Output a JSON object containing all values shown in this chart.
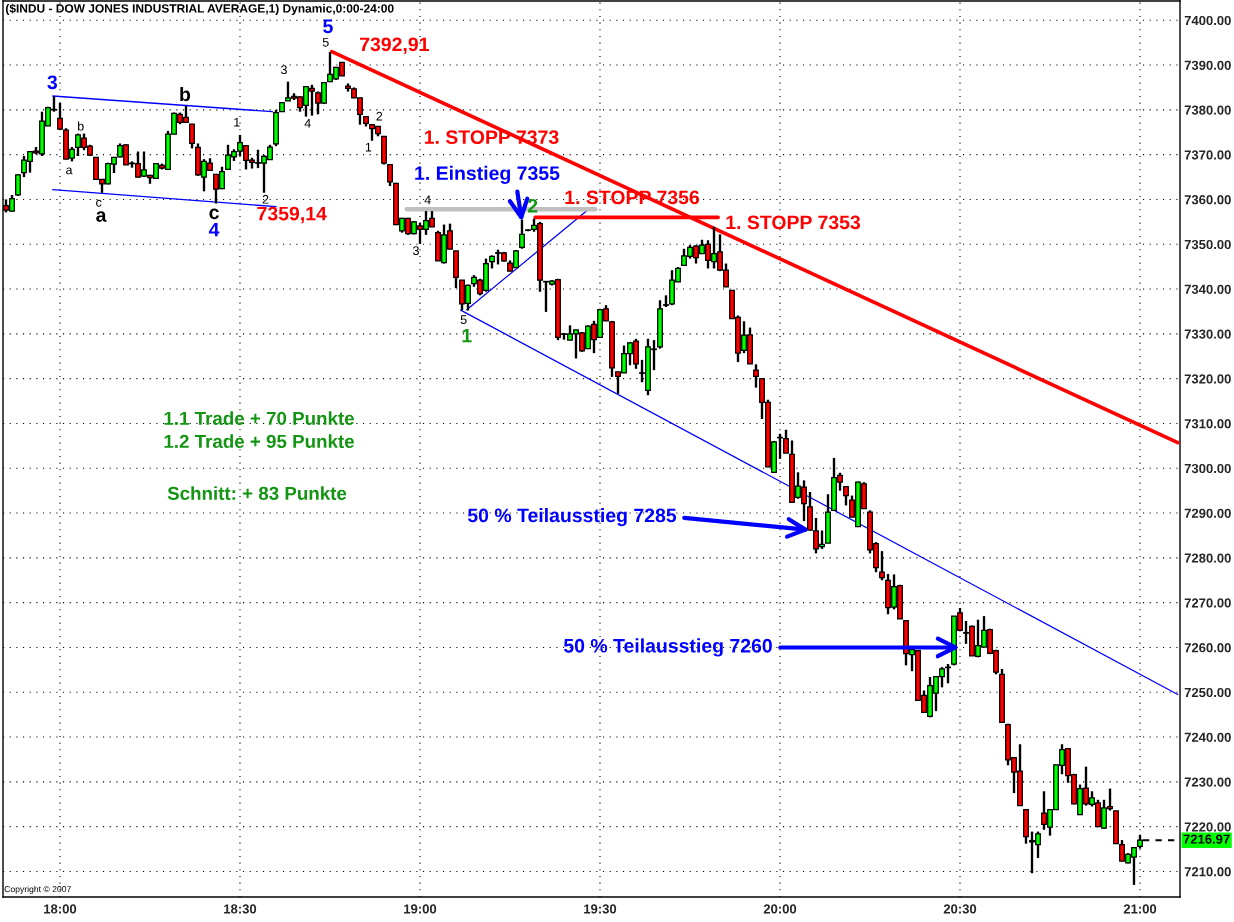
{
  "chart_data": {
    "type": "candlestick",
    "title": "($INDU - DOW JONES INDUSTRIAL AVERAGE,1) Dynamic,0:00-24:00",
    "x": [
      17.85,
      17.8667,
      17.8833,
      17.9,
      17.9167,
      17.9333,
      17.95,
      17.9667,
      17.9833,
      18,
      18.0167,
      18.0333,
      18.05,
      18.0667,
      18.0833,
      18.1,
      18.1167,
      18.1333,
      18.15,
      18.1667,
      18.1833,
      18.2,
      18.2167,
      18.2333,
      18.25,
      18.2667,
      18.2833,
      18.3,
      18.3167,
      18.3333,
      18.35,
      18.3667,
      18.3833,
      18.4,
      18.4167,
      18.4333,
      18.45,
      18.4667,
      18.4833,
      18.5,
      18.5167,
      18.5333,
      18.55,
      18.5667,
      18.5833,
      18.6,
      18.6167,
      18.6333,
      18.65,
      18.6667,
      18.6833,
      18.7,
      18.7167,
      18.7333,
      18.75,
      18.7667,
      18.7833,
      18.8,
      18.8167,
      18.8333,
      18.85,
      18.8667,
      18.8833,
      18.9,
      18.9167,
      18.9333,
      18.95,
      18.9667,
      18.9833,
      19,
      19.0167,
      19.0333,
      19.05,
      19.0667,
      19.0833,
      19.1,
      19.1167,
      19.1333,
      19.15,
      19.1667,
      19.1833,
      19.2,
      19.2167,
      19.2333,
      19.25,
      19.2667,
      19.2833,
      19.3,
      19.3167,
      19.3333,
      19.35,
      19.3667,
      19.3833,
      19.4,
      19.4167,
      19.4333,
      19.45,
      19.4667,
      19.4833,
      19.5,
      19.5167,
      19.5333,
      19.55,
      19.5667,
      19.5833,
      19.6,
      19.6167,
      19.6333,
      19.65,
      19.6667,
      19.6833,
      19.7,
      19.7167,
      19.7333,
      19.75,
      19.7667,
      19.7833,
      19.8,
      19.8167,
      19.8333,
      19.85,
      19.8667,
      19.8833,
      19.9,
      19.9167,
      19.9333,
      19.95,
      19.9667,
      19.9833,
      20,
      20.0167,
      20.0333,
      20.05,
      20.0667,
      20.0833,
      20.1,
      20.1167,
      20.1333,
      20.15,
      20.1667,
      20.1833,
      20.2,
      20.2167,
      20.2333,
      20.25,
      20.2667,
      20.2833,
      20.3,
      20.3167,
      20.3333,
      20.35,
      20.3667,
      20.3833,
      20.4,
      20.4167,
      20.4333,
      20.45,
      20.4667,
      20.4833,
      20.5,
      20.5167,
      20.5333,
      20.55,
      20.5667,
      20.5833,
      20.6,
      20.6167,
      20.6333,
      20.65,
      20.6667,
      20.6833,
      20.7,
      20.7167,
      20.7333,
      20.75,
      20.7667,
      20.7833,
      20.8,
      20.8167,
      20.8333,
      20.85,
      20.8667,
      20.8833,
      20.9,
      20.9167,
      20.9333,
      20.95,
      20.9667,
      20.9833,
      21
    ],
    "ohlc": [
      [
        7358.6,
        7360.0,
        7357.1,
        7357.6
      ],
      [
        7357.4,
        7361.0,
        7357.3,
        7360.2
      ],
      [
        7361.0,
        7365.6,
        7360.8,
        7365.5
      ],
      [
        7366.0,
        7369.7,
        7365.0,
        7368.8
      ],
      [
        7368.5,
        7370.8,
        7366.0,
        7370.7
      ],
      [
        7370.8,
        7371.7,
        7370.1,
        7370.4
      ],
      [
        7370.2,
        7379.6,
        7369.7,
        7377.5
      ],
      [
        7376.4,
        7380.7,
        7376.4,
        7380.5
      ],
      [
        7380.1,
        7383.0,
        7379.6,
        7380.0
      ],
      [
        7378.1,
        7381.6,
        7375.5,
        7375.7
      ],
      [
        7375.5,
        7375.9,
        7369.0,
        7369.0
      ],
      [
        7369.2,
        7371.7,
        7368.5,
        7371.2
      ],
      [
        7371.6,
        7374.7,
        7369.7,
        7374.4
      ],
      [
        7373.7,
        7374.7,
        7371.0,
        7371.6
      ],
      [
        7371.9,
        7372.2,
        7369.7,
        7369.9
      ],
      [
        7369.4,
        7369.4,
        7364.5,
        7364.5
      ],
      [
        7364.5,
        7364.5,
        7361.5,
        7363.5
      ],
      [
        7363.5,
        7368.2,
        7363.4,
        7368.0
      ],
      [
        7367.9,
        7369.4,
        7365.9,
        7369.4
      ],
      [
        7369.5,
        7372.5,
        7369.4,
        7372.0
      ],
      [
        7372.2,
        7372.3,
        7367.7,
        7367.7
      ],
      [
        7368.1,
        7368.5,
        7367.1,
        7368.0
      ],
      [
        7368.0,
        7370.7,
        7364.9,
        7365.0
      ],
      [
        7365.2,
        7370.7,
        7365.0,
        7366.6
      ],
      [
        7365.4,
        7365.5,
        7363.5,
        7364.9
      ],
      [
        7364.7,
        7368.1,
        7364.7,
        7368.0
      ],
      [
        7367.6,
        7368.0,
        7366.7,
        7367.0
      ],
      [
        7366.7,
        7375.3,
        7366.7,
        7374.6
      ],
      [
        7374.6,
        7379.4,
        7374.6,
        7379.2
      ],
      [
        7379.0,
        7379.4,
        7376.8,
        7377.2
      ],
      [
        7378.3,
        7380.9,
        7377.2,
        7377.2
      ],
      [
        7376.8,
        7376.8,
        7371.4,
        7372.5
      ],
      [
        7371.6,
        7372.5,
        7365.3,
        7365.5
      ],
      [
        7365.0,
        7369.0,
        7361.8,
        7368.5
      ],
      [
        7368.1,
        7369.2,
        7366.4,
        7366.5
      ],
      [
        7365.6,
        7365.6,
        7359.1,
        7362.3
      ],
      [
        7362.4,
        7367.3,
        7362.3,
        7366.2
      ],
      [
        7366.7,
        7372.2,
        7366.7,
        7369.9
      ],
      [
        7369.5,
        7371.2,
        7368.6,
        7370.7
      ],
      [
        7370.8,
        7374.4,
        7369.7,
        7372.7
      ],
      [
        7372.0,
        7372.0,
        7366.7,
        7368.7
      ],
      [
        7368.8,
        7369.3,
        7366.9,
        7368.3
      ],
      [
        7368.2,
        7371.1,
        7367.0,
        7368.1
      ],
      [
        7368.1,
        7369.9,
        7361.5,
        7369.6
      ],
      [
        7368.9,
        7372.2,
        7368.9,
        7371.7
      ],
      [
        7372.4,
        7380.0,
        7371.9,
        7379.4
      ],
      [
        7379.6,
        7381.7,
        7379.6,
        7381.6
      ],
      [
        7382.0,
        7386.3,
        7382.0,
        7382.7
      ],
      [
        7383.0,
        7383.7,
        7382.2,
        7382.6
      ],
      [
        7382.9,
        7383.0,
        7379.6,
        7380.5
      ],
      [
        7381.0,
        7385.2,
        7378.5,
        7385.2
      ],
      [
        7384.8,
        7385.6,
        7378.7,
        7384.2
      ],
      [
        7383.8,
        7384.1,
        7379.0,
        7381.5
      ],
      [
        7381.5,
        7386.1,
        7381.3,
        7386.1
      ],
      [
        7386.3,
        7392.9,
        7386.3,
        7387.9
      ],
      [
        7386.9,
        7389.6,
        7386.7,
        7389.5
      ],
      [
        7390.6,
        7390.6,
        7387.6,
        7387.6
      ],
      [
        7385.3,
        7385.9,
        7384.1,
        7384.8
      ],
      [
        7384.7,
        7385.0,
        7382.6,
        7382.7
      ],
      [
        7382.7,
        7382.7,
        7376.7,
        7379.0
      ],
      [
        7378.5,
        7378.5,
        7376.3,
        7377.0
      ],
      [
        7376.7,
        7376.8,
        7373.1,
        7375.8
      ],
      [
        7376.3,
        7376.3,
        7374.1,
        7374.7
      ],
      [
        7374.1,
        7374.1,
        7367.8,
        7368.1
      ],
      [
        7367.8,
        7367.8,
        7363.0,
        7363.9
      ],
      [
        7363.6,
        7363.7,
        7354.4,
        7354.4
      ],
      [
        7353.0,
        7355.9,
        7352.6,
        7355.8
      ],
      [
        7355.8,
        7355.9,
        7352.1,
        7352.4
      ],
      [
        7352.4,
        7355.2,
        7352.2,
        7355.0
      ],
      [
        7354.1,
        7354.8,
        7350.1,
        7353.3
      ],
      [
        7353.3,
        7357.4,
        7352.1,
        7355.3
      ],
      [
        7355.8,
        7357.4,
        7353.9,
        7353.9
      ],
      [
        7352.6,
        7353.0,
        7346.3,
        7346.3
      ],
      [
        7345.9,
        7354.4,
        7345.7,
        7352.1
      ],
      [
        7353.0,
        7354.6,
        7348.9,
        7348.9
      ],
      [
        7348.5,
        7348.5,
        7340.2,
        7342.6
      ],
      [
        7342.0,
        7342.0,
        7335.3,
        7336.7
      ],
      [
        7336.8,
        7341.0,
        7335.2,
        7340.8
      ],
      [
        7341.2,
        7343.1,
        7340.5,
        7342.6
      ],
      [
        7342.0,
        7342.3,
        7338.6,
        7339.0
      ],
      [
        7339.7,
        7346.8,
        7339.4,
        7345.7
      ],
      [
        7346.1,
        7347.5,
        7344.6,
        7347.3
      ],
      [
        7348.0,
        7348.8,
        7345.5,
        7348.1
      ],
      [
        7348.1,
        7348.3,
        7346.1,
        7346.3
      ],
      [
        7345.8,
        7346.4,
        7344.0,
        7344.0
      ],
      [
        7344.8,
        7348.7,
        7344.8,
        7348.5
      ],
      [
        7349.3,
        7355.5,
        7349.0,
        7352.2
      ],
      [
        7353.1,
        7353.3,
        7352.9,
        7353.2
      ],
      [
        7353.3,
        7355.7,
        7352.8,
        7354.2
      ],
      [
        7354.6,
        7355.0,
        7339.4,
        7342.0
      ],
      [
        7341.7,
        7341.8,
        7334.9,
        7341.6
      ],
      [
        7341.1,
        7342.0,
        7340.8,
        7341.8
      ],
      [
        7342.1,
        7342.3,
        7328.6,
        7329.2
      ],
      [
        7330.0,
        7330.2,
        7328.7,
        7329.9
      ],
      [
        7328.6,
        7331.9,
        7328.6,
        7330.0
      ],
      [
        7330.0,
        7330.9,
        7324.5,
        7330.9
      ],
      [
        7330.2,
        7330.4,
        7326.0,
        7326.2
      ],
      [
        7326.7,
        7331.9,
        7326.7,
        7331.7
      ],
      [
        7332.1,
        7332.9,
        7325.7,
        7328.7
      ],
      [
        7329.2,
        7335.6,
        7329.2,
        7335.4
      ],
      [
        7335.6,
        7336.4,
        7332.9,
        7332.9
      ],
      [
        7332.7,
        7332.9,
        7320.4,
        7322.4
      ],
      [
        7321.5,
        7321.5,
        7316.6,
        7320.5
      ],
      [
        7321.3,
        7327.4,
        7321.3,
        7325.6
      ],
      [
        7325.6,
        7328.2,
        7323.0,
        7328.0
      ],
      [
        7328.4,
        7328.9,
        7322.2,
        7323.3
      ],
      [
        7321.3,
        7324.2,
        7319.2,
        7321.2
      ],
      [
        7317.4,
        7328.9,
        7316.3,
        7327.1
      ],
      [
        7326.6,
        7328.6,
        7321.9,
        7326.5
      ],
      [
        7327.1,
        7337.5,
        7326.7,
        7335.6
      ],
      [
        7336.5,
        7338.6,
        7336.0,
        7336.4
      ],
      [
        7336.7,
        7344.2,
        7336.4,
        7342.0
      ],
      [
        7341.6,
        7344.9,
        7341.6,
        7344.6
      ],
      [
        7345.3,
        7349.0,
        7345.3,
        7347.4
      ],
      [
        7347.3,
        7349.8,
        7346.8,
        7349.3
      ],
      [
        7349.6,
        7349.8,
        7345.7,
        7347.0
      ],
      [
        7347.9,
        7351.0,
        7347.9,
        7349.8
      ],
      [
        7350.0,
        7350.9,
        7344.6,
        7346.4
      ],
      [
        7346.1,
        7353.9,
        7344.6,
        7347.9
      ],
      [
        7348.3,
        7352.2,
        7344.0,
        7344.2
      ],
      [
        7344.2,
        7345.7,
        7340.5,
        7340.5
      ],
      [
        7339.7,
        7339.7,
        7333.4,
        7333.4
      ],
      [
        7333.7,
        7334.1,
        7323.7,
        7325.7
      ],
      [
        7326.3,
        7332.8,
        7325.7,
        7329.7
      ],
      [
        7329.8,
        7331.4,
        7323.3,
        7323.3
      ],
      [
        7321.9,
        7323.2,
        7318.0,
        7320.5
      ],
      [
        7320.0,
        7320.0,
        7311.0,
        7314.7
      ],
      [
        7314.7,
        7315.3,
        7300.3,
        7300.3
      ],
      [
        7299.1,
        7306.1,
        7299.1,
        7305.9
      ],
      [
        7306.9,
        7307.7,
        7302.1,
        7306.8
      ],
      [
        7306.6,
        7308.6,
        7303.4,
        7303.4
      ],
      [
        7303.1,
        7306.2,
        7292.4,
        7292.4
      ],
      [
        7293.5,
        7299.1,
        7293.2,
        7296.0
      ],
      [
        7295.8,
        7297.3,
        7288.2,
        7292.1
      ],
      [
        7291.4,
        7294.7,
        7286.2,
        7286.2
      ],
      [
        7286.0,
        7288.9,
        7281.0,
        7282.0
      ],
      [
        7282.5,
        7286.1,
        7282.0,
        7283.0
      ],
      [
        7283.3,
        7294.2,
        7283.3,
        7290.2
      ],
      [
        7290.6,
        7302.3,
        7290.6,
        7297.9
      ],
      [
        7298.4,
        7299.0,
        7295.0,
        7296.9
      ],
      [
        7295.9,
        7295.9,
        7291.7,
        7293.9
      ],
      [
        7292.9,
        7293.9,
        7289.1,
        7289.1
      ],
      [
        7287.0,
        7297.0,
        7287.0,
        7296.9
      ],
      [
        7296.5,
        7296.9,
        7291.0,
        7291.0
      ],
      [
        7290.2,
        7290.6,
        7281.0,
        7281.8
      ],
      [
        7283.2,
        7283.5,
        7276.8,
        7277.8
      ],
      [
        7276.8,
        7281.5,
        7275.0,
        7275.6
      ],
      [
        7275.0,
        7276.4,
        7267.4,
        7268.9
      ],
      [
        7269.0,
        7276.3,
        7268.5,
        7273.6
      ],
      [
        7273.8,
        7274.0,
        7266.4,
        7266.4
      ],
      [
        7266.0,
        7266.0,
        7256.0,
        7258.6
      ],
      [
        7258.4,
        7259.6,
        7254.7,
        7259.5
      ],
      [
        7259.3,
        7259.3,
        7248.2,
        7248.2
      ],
      [
        7249.3,
        7250.4,
        7245.5,
        7245.5
      ],
      [
        7244.6,
        7253.4,
        7244.4,
        7251.5
      ],
      [
        7249.8,
        7253.5,
        7245.8,
        7253.5
      ],
      [
        7253.5,
        7255.6,
        7251.1,
        7255.2
      ],
      [
        7255.5,
        7256.3,
        7252.0,
        7255.6
      ],
      [
        7256.3,
        7267.0,
        7256.0,
        7267.0
      ],
      [
        7267.7,
        7268.8,
        7263.6,
        7263.8
      ],
      [
        7263.3,
        7265.9,
        7260.8,
        7263.2
      ],
      [
        7264.7,
        7264.9,
        7258.1,
        7258.1
      ],
      [
        7258.0,
        7266.2,
        7257.8,
        7260.4
      ],
      [
        7260.1,
        7267.0,
        7260.1,
        7263.8
      ],
      [
        7264.0,
        7264.2,
        7258.5,
        7258.7
      ],
      [
        7259.3,
        7259.5,
        7254.0,
        7254.5
      ],
      [
        7254.0,
        7255.2,
        7243.3,
        7243.3
      ],
      [
        7242.8,
        7243.0,
        7233.7,
        7234.9
      ],
      [
        7235.4,
        7235.4,
        7227.5,
        7232.2
      ],
      [
        7232.4,
        7238.4,
        7224.7,
        7224.7
      ],
      [
        7223.8,
        7223.8,
        7216.2,
        7217.8
      ],
      [
        7216.9,
        7218.9,
        7209.6,
        7216.6
      ],
      [
        7216.0,
        7218.9,
        7213.0,
        7218.4
      ],
      [
        7223.0,
        7227.9,
        7219.3,
        7220.5
      ],
      [
        7219.9,
        7223.8,
        7218.0,
        7223.8
      ],
      [
        7223.8,
        7233.8,
        7223.8,
        7233.8
      ],
      [
        7233.7,
        7238.4,
        7231.7,
        7237.2
      ],
      [
        7237.4,
        7237.4,
        7229.8,
        7231.4
      ],
      [
        7231.6,
        7231.8,
        7225.0,
        7225.1
      ],
      [
        7222.7,
        7229.4,
        7222.7,
        7228.5
      ],
      [
        7228.6,
        7233.4,
        7224.7,
        7225.1
      ],
      [
        7225.0,
        7227.9,
        7224.5,
        7226.4
      ],
      [
        7225.3,
        7226.0,
        7219.9,
        7220.0
      ],
      [
        7219.7,
        7226.0,
        7219.5,
        7224.2
      ],
      [
        7224.5,
        7228.5,
        7223.6,
        7224.0
      ],
      [
        7223.5,
        7223.5,
        7216.1,
        7216.2
      ],
      [
        7216.0,
        7217.0,
        7212.3,
        7212.3
      ],
      [
        7211.9,
        7214.1,
        7211.8,
        7213.8
      ],
      [
        7213.2,
        7215.3,
        7207.0,
        7215.3
      ],
      [
        7215.6,
        7218.2,
        7215.1,
        7216.97
      ]
    ],
    "colors": [
      "#ff0000",
      "#00ff00",
      "#00ff00",
      "#00ff00",
      "#00ff00",
      "#ff0000",
      "#00ff00",
      "#00ff00",
      "#000000",
      "#ff0000",
      "#ff0000",
      "#00ff00",
      "#00ff00",
      "#ff0000",
      "#ff0000",
      "#ff0000",
      "#ff0000",
      "#00ff00",
      "#00ff00",
      "#00ff00",
      "#ff0000",
      "#000000",
      "#ff0000",
      "#00ff00",
      "#ff0000",
      "#00ff00",
      "#ff0000",
      "#00ff00",
      "#00ff00",
      "#ff0000",
      "#ff0000",
      "#ff0000",
      "#ff0000",
      "#00ff00",
      "#ff0000",
      "#ff0000",
      "#00ff00",
      "#00ff00",
      "#00ff00",
      "#00ff00",
      "#ff0000",
      "#ff0000",
      "#000000",
      "#00ff00",
      "#00ff00",
      "#00ff00",
      "#00ff00",
      "#00ff00",
      "#ff0000",
      "#ff0000",
      "#00ff00",
      "#ff0000",
      "#ff0000",
      "#00ff00",
      "#00ff00",
      "#00ff00",
      "#ff0000",
      "#ff0000",
      "#ff0000",
      "#ff0000",
      "#ff0000",
      "#ff0000",
      "#ff0000",
      "#ff0000",
      "#ff0000",
      "#ff0000",
      "#00ff00",
      "#ff0000",
      "#00ff00",
      "#ff0000",
      "#00ff00",
      "#ff0000",
      "#ff0000",
      "#00ff00",
      "#ff0000",
      "#ff0000",
      "#ff0000",
      "#00ff00",
      "#00ff00",
      "#ff0000",
      "#00ff00",
      "#00ff00",
      "#000000",
      "#ff0000",
      "#ff0000",
      "#00ff00",
      "#00ff00",
      "#000000",
      "#00ff00",
      "#ff0000",
      "#000000",
      "#00ff00",
      "#ff0000",
      "#000000",
      "#00ff00",
      "#00ff00",
      "#ff0000",
      "#00ff00",
      "#ff0000",
      "#00ff00",
      "#ff0000",
      "#ff0000",
      "#ff0000",
      "#00ff00",
      "#00ff00",
      "#ff0000",
      "#000000",
      "#00ff00",
      "#000000",
      "#00ff00",
      "#000000",
      "#00ff00",
      "#00ff00",
      "#00ff00",
      "#00ff00",
      "#ff0000",
      "#00ff00",
      "#ff0000",
      "#00ff00",
      "#ff0000",
      "#ff0000",
      "#ff0000",
      "#ff0000",
      "#00ff00",
      "#ff0000",
      "#ff0000",
      "#ff0000",
      "#ff0000",
      "#00ff00",
      "#000000",
      "#ff0000",
      "#ff0000",
      "#00ff00",
      "#ff0000",
      "#ff0000",
      "#ff0000",
      "#00ff00",
      "#00ff00",
      "#00ff00",
      "#ff0000",
      "#ff0000",
      "#ff0000",
      "#00ff00",
      "#ff0000",
      "#ff0000",
      "#ff0000",
      "#ff0000",
      "#ff0000",
      "#00ff00",
      "#ff0000",
      "#ff0000",
      "#00ff00",
      "#ff0000",
      "#ff0000",
      "#00ff00",
      "#00ff00",
      "#00ff00",
      "#000000",
      "#00ff00",
      "#ff0000",
      "#000000",
      "#ff0000",
      "#00ff00",
      "#00ff00",
      "#ff0000",
      "#ff0000",
      "#ff0000",
      "#ff0000",
      "#ff0000",
      "#ff0000",
      "#ff0000",
      "#ff0000",
      "#00ff00",
      "#ff0000",
      "#00ff00",
      "#00ff00",
      "#00ff00",
      "#ff0000",
      "#ff0000",
      "#00ff00",
      "#ff0000",
      "#00ff00",
      "#ff0000",
      "#00ff00",
      "#ff0000",
      "#ff0000",
      "#ff0000",
      "#00ff00",
      "#00ff00",
      "#00ff00"
    ],
    "series": [
      {
        "type": "line",
        "x": [
          17.98,
          18.59
        ],
        "values": [
          7383.1,
          7379.6
        ],
        "color": "#0000ff"
      },
      {
        "type": "line",
        "x": [
          17.98,
          18.6
        ],
        "values": [
          7362.2,
          7358.4
        ],
        "color": "#0000ff"
      },
      {
        "type": "line",
        "x": [
          18.755,
          21.105
        ],
        "values": [
          7393.0,
          7305.7
        ],
        "color": "#ff0000"
      },
      {
        "type": "line",
        "x": [
          19.113,
          21.105
        ],
        "values": [
          7335.3,
          7249.5
        ],
        "color": "#0000ff"
      },
      {
        "type": "line",
        "x": [
          19.13,
          19.465
        ],
        "values": [
          7335.4,
          7357.6
        ],
        "color": "#0000ff"
      },
      {
        "type": "line",
        "x": [
          18.963,
          19.487
        ],
        "values": [
          7357.8,
          7357.8
        ],
        "color": "#c0c0c0"
      },
      {
        "type": "line",
        "x": [
          19.32,
          19.828
        ],
        "values": [
          7356,
          7356
        ],
        "color": "#ff0000"
      }
    ],
    "ref_lines": [
      {
        "axis": "y",
        "value": 7216.97,
        "label": "7216.97",
        "color": "#000000",
        "line_style": "dashed"
      }
    ],
    "annotations": [
      "3",
      "b",
      "a",
      "c",
      "a",
      "b",
      "1",
      "c",
      "4",
      {
        "text": "2",
        "x": 18.571,
        "y": 7359.8
      },
      "7359,14",
      "3",
      "4",
      "5",
      "5",
      "7392,91",
      "1",
      "2",
      "3",
      "4",
      "5",
      "1",
      {
        "text": "2",
        "x": 19.313,
        "y": 7358.2
      },
      "1. STOPP 7373",
      {
        "text": "1. Einstieg 7355",
        "x": 19.2833,
        "y": 7355
      },
      "1. STOPP 7356",
      "1. STOPP 7353",
      "1.1 Trade + 70 Punkte",
      "1.2 Trade + 95 Punkte",
      "Schnitt: + 83 Punkte",
      {
        "text": "50 % Teilausstieg 7285",
        "x": 20.0833,
        "y": 7286.2
      },
      {
        "text": "50 % Teilausstieg 7260",
        "x": 20.5,
        "y": 7260
      },
      "Copyright © 2007"
    ],
    "xlim": [
      17.8417,
      21.1111
    ],
    "ylim": [
      7204.3,
      7404.3
    ],
    "xticks": [
      {
        "value": 18,
        "label": "18:00"
      },
      {
        "value": 18.5,
        "label": "18:30"
      },
      {
        "value": 19,
        "label": "19:00"
      },
      {
        "value": 19.5,
        "label": "19:30"
      },
      {
        "value": 20,
        "label": "20:00"
      },
      {
        "value": 20.5,
        "label": "20:30"
      },
      {
        "value": 21,
        "label": "21:00"
      }
    ],
    "yticks": [
      {
        "value": 7210,
        "label": "7210.00"
      },
      {
        "value": 7220,
        "label": "7220.00"
      },
      {
        "value": 7230,
        "label": "7230.00"
      },
      {
        "value": 7240,
        "label": "7240.00"
      },
      {
        "value": 7250,
        "label": "7250.00"
      },
      {
        "value": 7260,
        "label": "7260.00"
      },
      {
        "value": 7270,
        "label": "7270.00"
      },
      {
        "value": 7280,
        "label": "7280.00"
      },
      {
        "value": 7290,
        "label": "7290.00"
      },
      {
        "value": 7300,
        "label": "7300.00"
      },
      {
        "value": 7310,
        "label": "7310.00"
      },
      {
        "value": 7320,
        "label": "7320.00"
      },
      {
        "value": 7330,
        "label": "7330.00"
      },
      {
        "value": 7340,
        "label": "7340.00"
      },
      {
        "value": 7350,
        "label": "7350.00"
      },
      {
        "value": 7360,
        "label": "7360.00"
      },
      {
        "value": 7370,
        "label": "7370.00"
      },
      {
        "value": 7380,
        "label": "7380.00"
      },
      {
        "value": 7390,
        "label": "7390.00"
      },
      {
        "value": 7400,
        "label": "7400.00"
      }
    ],
    "grid": true
  }
}
